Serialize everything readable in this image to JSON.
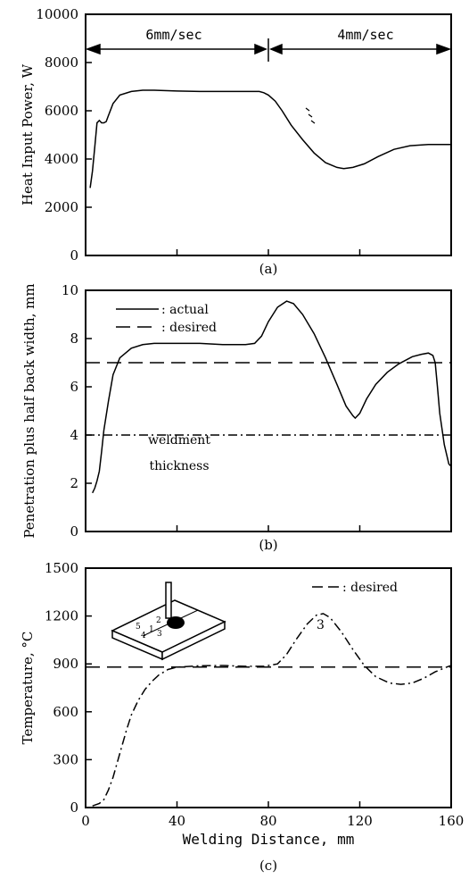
{
  "chart_data": [
    {
      "type": "line",
      "panel_label": "(a)",
      "ylabel": "Heat Input Power, W",
      "xlim": [
        0,
        160
      ],
      "ylim": [
        0,
        10000
      ],
      "xticks": [
        "",
        "",
        "",
        "",
        ""
      ],
      "yticks": [
        "0",
        "2000",
        "4000",
        "6000",
        "8000",
        "10000"
      ],
      "speed_labels": [
        "6mm/sec",
        "4mm/sec"
      ],
      "speed_change_x": 80,
      "series": [
        {
          "style": "solid",
          "points": [
            [
              2,
              2800
            ],
            [
              3,
              3500
            ],
            [
              4,
              4500
            ],
            [
              5,
              5500
            ],
            [
              6,
              5600
            ],
            [
              7,
              5500
            ],
            [
              8,
              5500
            ],
            [
              9,
              5550
            ],
            [
              10,
              5800
            ],
            [
              12,
              6300
            ],
            [
              15,
              6650
            ],
            [
              20,
              6800
            ],
            [
              25,
              6850
            ],
            [
              30,
              6850
            ],
            [
              40,
              6820
            ],
            [
              50,
              6800
            ],
            [
              60,
              6800
            ],
            [
              70,
              6800
            ],
            [
              76,
              6800
            ],
            [
              78,
              6750
            ],
            [
              80,
              6650
            ],
            [
              83,
              6400
            ],
            [
              86,
              6000
            ],
            [
              90,
              5400
            ],
            [
              95,
              4800
            ],
            [
              100,
              4250
            ],
            [
              105,
              3850
            ],
            [
              110,
              3650
            ],
            [
              113,
              3600
            ],
            [
              117,
              3650
            ],
            [
              122,
              3800
            ],
            [
              128,
              4100
            ],
            [
              135,
              4400
            ],
            [
              142,
              4550
            ],
            [
              150,
              4600
            ],
            [
              160,
              4600
            ]
          ]
        }
      ]
    },
    {
      "type": "line",
      "panel_label": "(b)",
      "ylabel": "Penetration plus half back width, mm",
      "xlim": [
        0,
        160
      ],
      "ylim": [
        0,
        10
      ],
      "xticks": [
        "",
        "",
        "",
        "",
        ""
      ],
      "yticks": [
        "0",
        "2",
        "4",
        "6",
        "8",
        "10"
      ],
      "legend": [
        "actual",
        "desired"
      ],
      "legend_prefixes": [
        ": ",
        ": "
      ],
      "annotation": [
        "weldment",
        "thickness"
      ],
      "series": [
        {
          "name": "actual",
          "style": "solid",
          "points": [
            [
              3,
              1.6
            ],
            [
              4,
              1.8
            ],
            [
              5,
              2.1
            ],
            [
              6,
              2.5
            ],
            [
              7,
              3.3
            ],
            [
              8,
              4.2
            ],
            [
              10,
              5.4
            ],
            [
              12,
              6.5
            ],
            [
              15,
              7.2
            ],
            [
              20,
              7.6
            ],
            [
              25,
              7.75
            ],
            [
              30,
              7.8
            ],
            [
              40,
              7.8
            ],
            [
              50,
              7.8
            ],
            [
              60,
              7.75
            ],
            [
              70,
              7.75
            ],
            [
              74,
              7.8
            ],
            [
              77,
              8.1
            ],
            [
              80,
              8.7
            ],
            [
              84,
              9.3
            ],
            [
              88,
              9.55
            ],
            [
              91,
              9.45
            ],
            [
              95,
              9.0
            ],
            [
              100,
              8.2
            ],
            [
              105,
              7.2
            ],
            [
              110,
              6.1
            ],
            [
              114,
              5.2
            ],
            [
              117,
              4.8
            ],
            [
              118,
              4.7
            ],
            [
              120,
              4.9
            ],
            [
              123,
              5.5
            ],
            [
              127,
              6.1
            ],
            [
              132,
              6.6
            ],
            [
              137,
              6.95
            ],
            [
              143,
              7.25
            ],
            [
              147,
              7.35
            ],
            [
              150,
              7.4
            ],
            [
              152,
              7.3
            ],
            [
              153,
              7.0
            ],
            [
              154,
              6.0
            ],
            [
              155,
              4.9
            ],
            [
              157,
              3.6
            ],
            [
              159,
              2.8
            ],
            [
              160,
              2.7
            ]
          ]
        },
        {
          "name": "desired",
          "style": "dashed",
          "points": [
            [
              0,
              7
            ],
            [
              160,
              7
            ]
          ]
        },
        {
          "style": "dashdot",
          "points": [
            [
              0,
              4
            ],
            [
              160,
              4
            ]
          ]
        }
      ]
    },
    {
      "type": "line",
      "panel_label": "(c)",
      "ylabel": "Temperature, °C",
      "xlabel": "Welding Distance, mm",
      "xlim": [
        0,
        160
      ],
      "ylim": [
        0,
        1500
      ],
      "xticks": [
        "0",
        "40",
        "80",
        "120",
        "160"
      ],
      "yticks": [
        "0",
        "300",
        "600",
        "900",
        "1200",
        "1500"
      ],
      "legend": [
        "desired"
      ],
      "legend_prefixes": [
        ": "
      ],
      "point_label": "3",
      "inset": {
        "labels": [
          "5",
          "4",
          "1",
          "2",
          "3"
        ]
      },
      "series": [
        {
          "name": "desired",
          "style": "dashed",
          "points": [
            [
              0,
              880
            ],
            [
              160,
              880
            ]
          ]
        },
        {
          "style": "dashdot",
          "points": [
            [
              3,
              10
            ],
            [
              6,
              25
            ],
            [
              8,
              50
            ],
            [
              10,
              110
            ],
            [
              12,
              190
            ],
            [
              14,
              290
            ],
            [
              16,
              390
            ],
            [
              18,
              490
            ],
            [
              20,
              580
            ],
            [
              23,
              670
            ],
            [
              26,
              740
            ],
            [
              29,
              790
            ],
            [
              32,
              830
            ],
            [
              36,
              865
            ],
            [
              40,
              880
            ],
            [
              50,
              888
            ],
            [
              60,
              890
            ],
            [
              70,
              885
            ],
            [
              78,
              885
            ],
            [
              84,
              900
            ],
            [
              88,
              960
            ],
            [
              92,
              1050
            ],
            [
              97,
              1150
            ],
            [
              101,
              1205
            ],
            [
              104,
              1215
            ],
            [
              107,
              1190
            ],
            [
              112,
              1100
            ],
            [
              117,
              990
            ],
            [
              122,
              890
            ],
            [
              127,
              820
            ],
            [
              133,
              780
            ],
            [
              138,
              772
            ],
            [
              143,
              780
            ],
            [
              148,
              810
            ],
            [
              153,
              850
            ],
            [
              158,
              880
            ],
            [
              160,
              890
            ]
          ]
        }
      ]
    }
  ]
}
